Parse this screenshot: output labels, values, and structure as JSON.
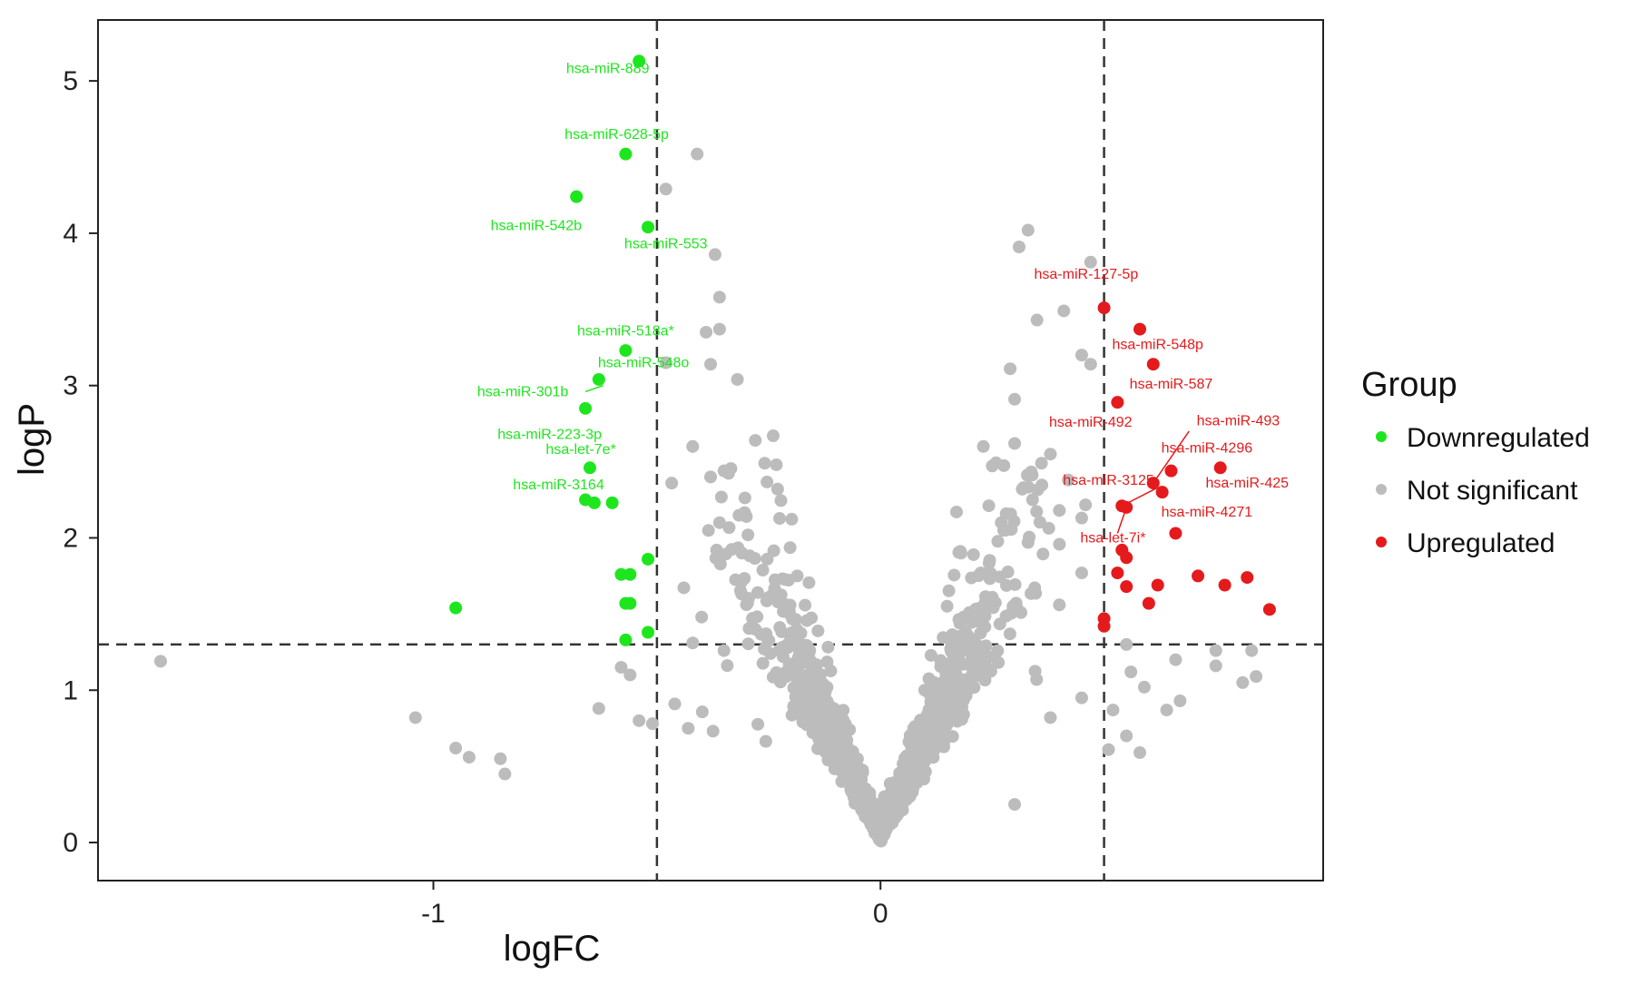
{
  "chart_data": {
    "type": "scatter",
    "xlabel": "logFC",
    "ylabel": "logP",
    "xlim": [
      -1.75,
      0.99
    ],
    "ylim": [
      -0.25,
      5.4
    ],
    "x_ticks": [
      -1,
      0
    ],
    "y_ticks": [
      0,
      1,
      2,
      3,
      4,
      5
    ],
    "grid": false,
    "thresholds": {
      "logFC": [
        -0.5,
        0.5
      ],
      "logP": 1.3
    },
    "legend": {
      "title": "Group",
      "placement": "right",
      "entries": [
        {
          "name": "Downregulated",
          "color": "#1ee61e"
        },
        {
          "name": "Not significant",
          "color": "#bcbcbc"
        },
        {
          "name": "Upregulated",
          "color": "#e41a1c"
        }
      ]
    },
    "series": [
      {
        "name": "Downregulated",
        "color": "#1ee61e",
        "points": [
          [
            -0.54,
            5.13
          ],
          [
            -0.57,
            4.52
          ],
          [
            -0.68,
            4.24
          ],
          [
            -0.52,
            4.04
          ],
          [
            -0.57,
            3.23
          ],
          [
            -0.63,
            3.04
          ],
          [
            -0.66,
            2.85
          ],
          [
            -0.65,
            2.46
          ],
          [
            -0.66,
            2.25
          ],
          [
            -0.64,
            2.23
          ],
          [
            -0.6,
            2.23
          ],
          [
            -0.52,
            1.86
          ],
          [
            -0.58,
            1.76
          ],
          [
            -0.56,
            1.76
          ],
          [
            -0.57,
            1.57
          ],
          [
            -0.56,
            1.57
          ],
          [
            -0.57,
            1.33
          ],
          [
            -0.52,
            1.38
          ],
          [
            -0.95,
            1.54
          ]
        ]
      },
      {
        "name": "Upregulated",
        "color": "#e41a1c",
        "points": [
          [
            0.5,
            3.51
          ],
          [
            0.58,
            3.37
          ],
          [
            0.61,
            3.14
          ],
          [
            0.53,
            2.89
          ],
          [
            0.76,
            2.46
          ],
          [
            0.65,
            2.44
          ],
          [
            0.61,
            2.36
          ],
          [
            0.63,
            2.3
          ],
          [
            0.55,
            2.2
          ],
          [
            0.54,
            2.21
          ],
          [
            0.66,
            2.03
          ],
          [
            0.54,
            1.92
          ],
          [
            0.55,
            1.87
          ],
          [
            0.53,
            1.77
          ],
          [
            0.71,
            1.75
          ],
          [
            0.82,
            1.74
          ],
          [
            0.77,
            1.69
          ],
          [
            0.62,
            1.69
          ],
          [
            0.55,
            1.68
          ],
          [
            0.6,
            1.57
          ],
          [
            0.87,
            1.53
          ],
          [
            0.5,
            1.47
          ],
          [
            0.5,
            1.42
          ]
        ]
      },
      {
        "name": "Not significant",
        "color": "#bcbcbc",
        "points": [
          [
            -1.61,
            1.19
          ],
          [
            -1.04,
            0.82
          ],
          [
            -0.95,
            0.62
          ],
          [
            -0.92,
            0.56
          ],
          [
            -0.85,
            0.55
          ],
          [
            -0.84,
            0.45
          ],
          [
            -0.63,
            0.88
          ],
          [
            -0.58,
            1.15
          ],
          [
            -0.56,
            1.1
          ],
          [
            -0.54,
            0.8
          ],
          [
            -0.51,
            0.78
          ],
          [
            -0.43,
            0.75
          ],
          [
            -0.46,
            0.91
          ],
          [
            -0.4,
            1.48
          ],
          [
            -0.38,
            2.4
          ],
          [
            -0.42,
            2.6
          ],
          [
            -0.35,
            2.44
          ],
          [
            -0.36,
            2.1
          ],
          [
            -0.3,
            2.14
          ],
          [
            -0.31,
            1.9
          ],
          [
            -0.28,
            2.64
          ],
          [
            -0.24,
            2.67
          ],
          [
            -0.23,
            2.32
          ],
          [
            -0.32,
            3.04
          ],
          [
            -0.38,
            3.14
          ],
          [
            -0.39,
            3.35
          ],
          [
            -0.36,
            3.37
          ],
          [
            -0.36,
            3.58
          ],
          [
            -0.37,
            3.86
          ],
          [
            -0.48,
            4.29
          ],
          [
            -0.41,
            4.52
          ],
          [
            -0.48,
            3.15
          ],
          [
            -0.35,
            1.26
          ],
          [
            -0.28,
            1.4
          ],
          [
            -0.26,
            1.27
          ],
          [
            0.33,
            4.02
          ],
          [
            0.31,
            3.91
          ],
          [
            0.47,
            3.81
          ],
          [
            0.41,
            3.49
          ],
          [
            0.45,
            3.2
          ],
          [
            0.29,
            3.11
          ],
          [
            0.35,
            3.43
          ],
          [
            0.47,
            3.14
          ],
          [
            0.3,
            2.91
          ],
          [
            0.3,
            2.62
          ],
          [
            0.38,
            2.55
          ],
          [
            0.23,
            2.6
          ],
          [
            0.36,
            2.49
          ],
          [
            0.42,
            2.38
          ],
          [
            0.34,
            2.25
          ],
          [
            0.4,
            2.18
          ],
          [
            0.45,
            2.13
          ],
          [
            0.27,
            2.1
          ],
          [
            0.32,
            2.33
          ],
          [
            0.28,
            2.05
          ],
          [
            0.33,
            1.97
          ],
          [
            0.17,
            2.17
          ],
          [
            0.18,
            1.9
          ],
          [
            0.25,
            1.61
          ],
          [
            0.4,
            1.56
          ],
          [
            0.45,
            1.77
          ],
          [
            0.55,
            1.3
          ],
          [
            0.56,
            1.12
          ],
          [
            0.59,
            1.02
          ],
          [
            0.66,
            1.2
          ],
          [
            0.67,
            0.93
          ],
          [
            0.64,
            0.87
          ],
          [
            0.75,
            1.16
          ],
          [
            0.75,
            1.26
          ],
          [
            0.81,
            1.05
          ],
          [
            0.84,
            1.09
          ],
          [
            0.83,
            1.26
          ],
          [
            0.52,
            0.87
          ],
          [
            0.55,
            0.7
          ],
          [
            0.51,
            0.61
          ],
          [
            0.58,
            0.59
          ],
          [
            0.45,
            0.95
          ],
          [
            0.38,
            0.82
          ],
          [
            0.3,
            0.25
          ]
        ]
      }
    ],
    "annotations": [
      {
        "text": "hsa-miR-889",
        "group": "Downregulated"
      },
      {
        "text": "hsa-miR-628-5p",
        "group": "Downregulated"
      },
      {
        "text": "hsa-miR-542b",
        "group": "Downregulated"
      },
      {
        "text": "hsa-miR-553",
        "group": "Downregulated"
      },
      {
        "text": "hsa-miR-518a*",
        "group": "Downregulated"
      },
      {
        "text": "hsa-miR-548o",
        "group": "Downregulated"
      },
      {
        "text": "hsa-miR-301b",
        "group": "Downregulated"
      },
      {
        "text": "hsa-miR-223-3p",
        "group": "Downregulated"
      },
      {
        "text": "hsa-let-7e*",
        "group": "Downregulated"
      },
      {
        "text": "hsa-miR-3164",
        "group": "Downregulated"
      },
      {
        "text": "hsa-miR-127-5p",
        "group": "Upregulated"
      },
      {
        "text": "hsa-miR-548p",
        "group": "Upregulated"
      },
      {
        "text": "hsa-miR-587",
        "group": "Upregulated"
      },
      {
        "text": "hsa-miR-492",
        "group": "Upregulated"
      },
      {
        "text": "hsa-miR-493",
        "group": "Upregulated"
      },
      {
        "text": "hsa-miR-4296",
        "group": "Upregulated"
      },
      {
        "text": "hsa-miR-3125",
        "group": "Upregulated"
      },
      {
        "text": "hsa-miR-425",
        "group": "Upregulated"
      },
      {
        "text": "hsa-miR-4271",
        "group": "Upregulated"
      },
      {
        "text": "hsa-let-7i*",
        "group": "Upregulated"
      }
    ]
  }
}
